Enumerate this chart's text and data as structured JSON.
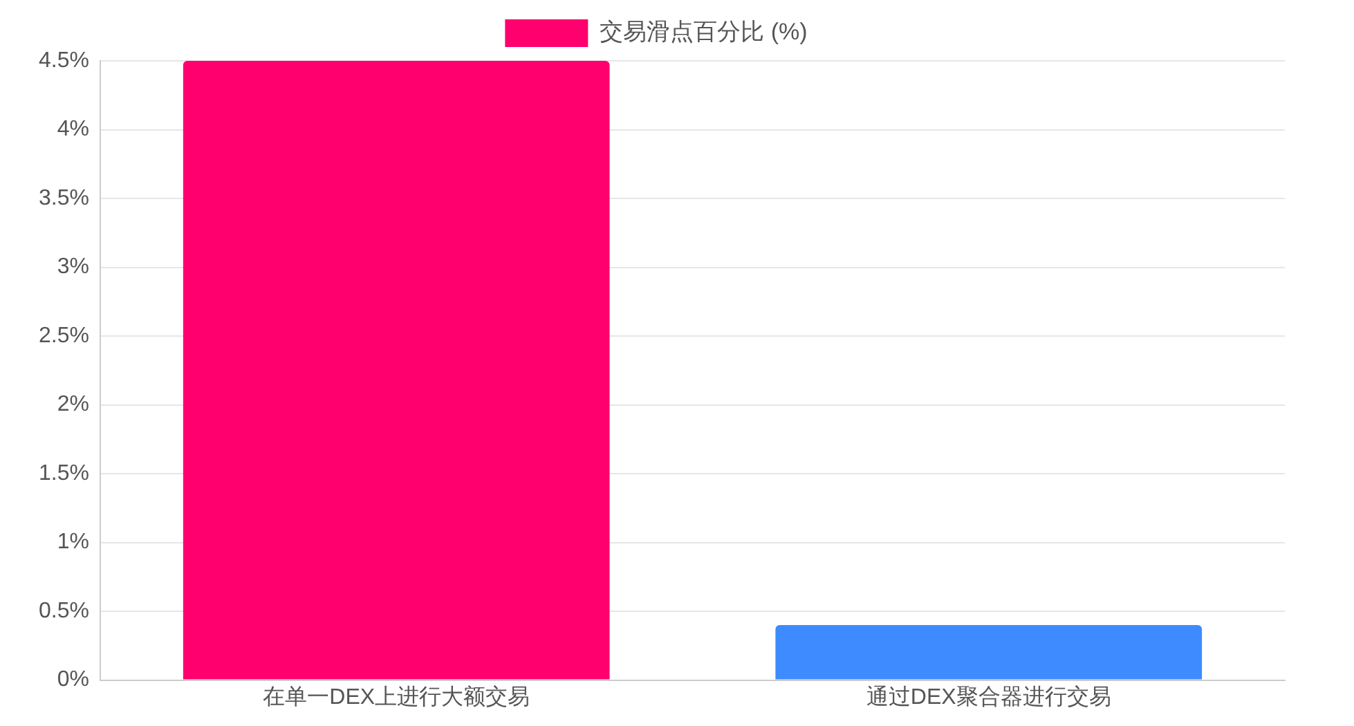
{
  "chart_data": {
    "type": "bar",
    "categories": [
      "在单一DEX上进行大额交易",
      "通过DEX聚合器进行交易"
    ],
    "series": [
      {
        "name": "交易滑点百分比 (%)",
        "colors": [
          "#ff006e",
          "#3d8bff"
        ],
        "values": [
          4.5,
          0.4
        ]
      }
    ],
    "ylim": [
      0,
      4.5
    ],
    "yticks": [
      {
        "value": 0,
        "label": "0%"
      },
      {
        "value": 0.5,
        "label": "0.5%"
      },
      {
        "value": 1,
        "label": "1%"
      },
      {
        "value": 1.5,
        "label": "1.5%"
      },
      {
        "value": 2,
        "label": "2%"
      },
      {
        "value": 2.5,
        "label": "2.5%"
      },
      {
        "value": 3,
        "label": "3%"
      },
      {
        "value": 3.5,
        "label": "3.5%"
      },
      {
        "value": 4,
        "label": "4%"
      },
      {
        "value": 4.5,
        "label": "4.5%"
      }
    ],
    "grid": "y",
    "legend": "top"
  }
}
